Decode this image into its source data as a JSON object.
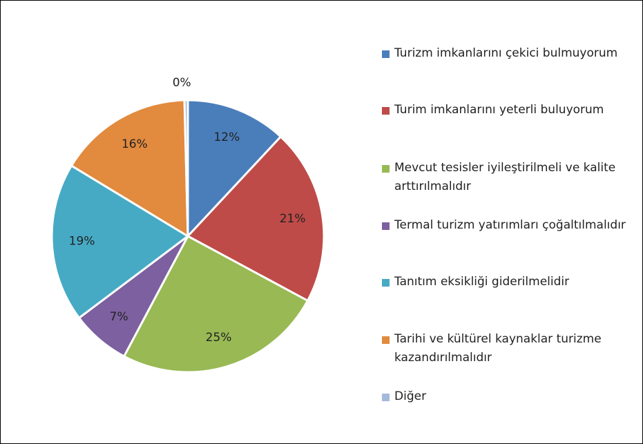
{
  "chart_data": {
    "type": "pie",
    "categories": [
      "Turizm imkanlarını çekici bulmuyorum",
      "Turim imkanlarını yeterli buluyorum",
      "Mevcut tesisler iyileştirilmeli  ve kalite arttırılmalıdır",
      "Termal turizm yatırımları çoğaltılmalıdır",
      "Tanıtım eksikliği giderilmelidir",
      "Tarihi ve kültürel kaynaklar turizme kazandırılmalıdır",
      "Diğer"
    ],
    "values": [
      12,
      21,
      25,
      7,
      19,
      16,
      0.4
    ],
    "value_labels": [
      "12%",
      "21%",
      "25%",
      "7%",
      "19%",
      "16%",
      "0%"
    ],
    "colors": [
      "#4a7ebb",
      "#be4b48",
      "#98b954",
      "#7d60a0",
      "#46aac5",
      "#e28a3e",
      "#a5b9dc"
    ],
    "legend": "right"
  }
}
